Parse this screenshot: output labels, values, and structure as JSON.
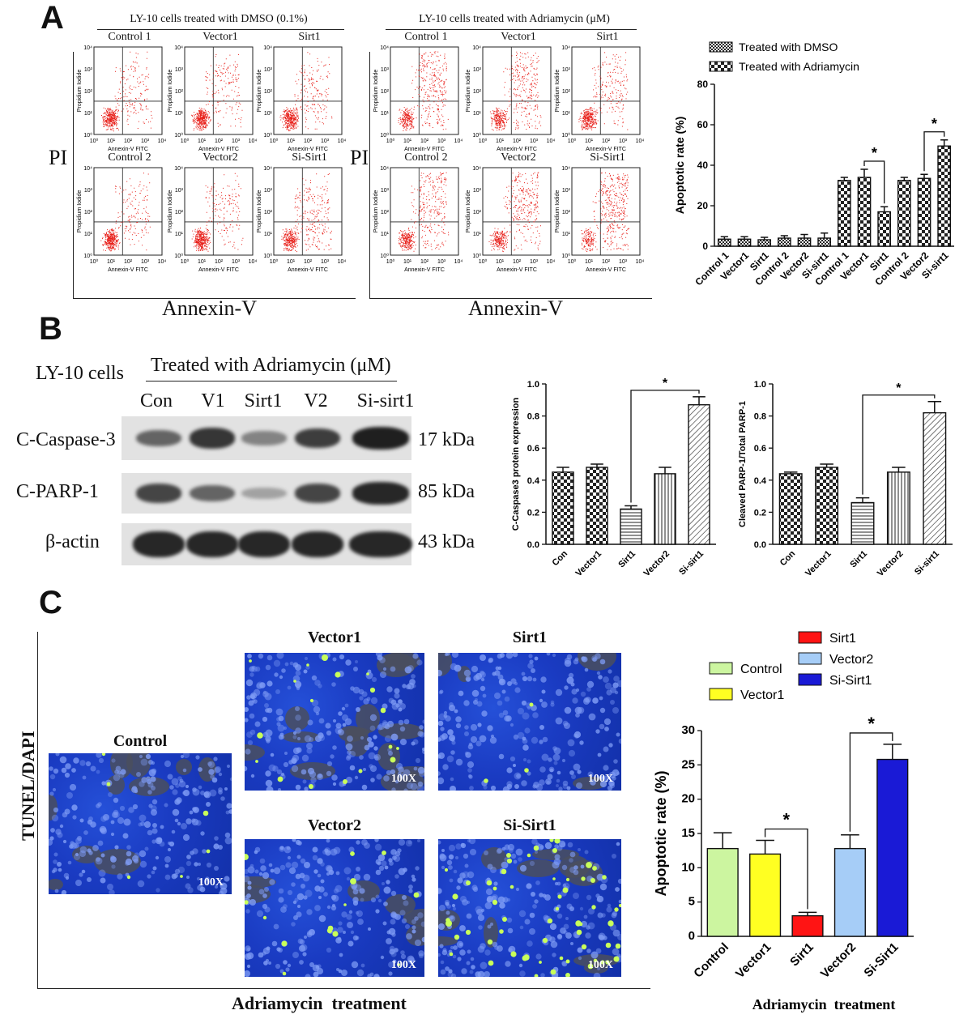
{
  "panels": {
    "a": "A",
    "b": "B",
    "c": "C"
  },
  "panelA": {
    "groups": [
      {
        "title": "LY-10 cells treated with DMSO (0.1%)",
        "x_label": "Annexin-V",
        "plots": [
          "Control 1",
          "Vector1",
          "Sirt1",
          "Control 2",
          "Vector2",
          "Si-Sirt1"
        ]
      },
      {
        "title": "LY-10 cells treated with Adriamycin (μM)",
        "x_label": "Annexin-V",
        "plots": [
          "Control 1",
          "Vector1",
          "Sirt1",
          "Control 2",
          "Vector2",
          "Si-Sirt1"
        ]
      }
    ],
    "pi_label": "PI",
    "flow_axis_x": "Annexin-V FITC",
    "flow_axis_y": "Propidium Iodide",
    "flow_ticks": [
      "10⁰",
      "10¹",
      "10²",
      "10³",
      "10⁴"
    ],
    "dot_color": "#e8201a"
  },
  "panelB": {
    "row_header": "LY-10 cells",
    "treatment_header": "Treated with Adriamycin (μM)",
    "lanes": [
      "Con",
      "V1",
      "Sirt1",
      "V2",
      "Si-sirt1"
    ],
    "rows": [
      {
        "label": "C-Caspase-3",
        "kda": "17 kDa"
      },
      {
        "label": "C-PARP-1",
        "kda": "85 kDa"
      },
      {
        "label": "β-actin",
        "kda": "43 kDa"
      }
    ]
  },
  "panelC": {
    "y_side_label": "TUNEL/DAPI",
    "bottom_label": "Adriamycin  treatment",
    "images": [
      {
        "title": "Control",
        "mag": "100X"
      },
      {
        "title": "Vector1",
        "mag": "100X"
      },
      {
        "title": "Sirt1",
        "mag": "100X"
      },
      {
        "title": "Vector2",
        "mag": "100X"
      },
      {
        "title": "Si-Sirt1",
        "mag": "100X"
      }
    ]
  },
  "chart_data": [
    {
      "id": "A-bar",
      "type": "bar",
      "categories": [
        "Control 1",
        "Vector1",
        "Sirt1",
        "Control 2",
        "Vector2",
        "Si-sirt1",
        "Control 1",
        "Vector1",
        "Sirt1",
        "Control 2",
        "Vector2",
        "Si-sirt1"
      ],
      "values": [
        3.5,
        3.5,
        3.2,
        4,
        4,
        4,
        32.5,
        34,
        17,
        32.5,
        33.5,
        49.5
      ],
      "errors": [
        1.2,
        1.2,
        1.2,
        1.2,
        1.8,
        2.5,
        1.5,
        4,
        2.5,
        1.5,
        2,
        3
      ],
      "hatch": [
        "dmso",
        "dmso",
        "dmso",
        "dmso",
        "dmso",
        "dmso",
        "adr",
        "adr",
        "adr",
        "adr",
        "adr",
        "adr"
      ],
      "legend": [
        "Treated with DMSO",
        "Treated with Adriamycin"
      ],
      "legend_position": "top-left",
      "ylabel": "Apoptotic rate (%)",
      "ylim": [
        0,
        80
      ],
      "yticks": [
        "0",
        "20",
        "40",
        "60",
        "80"
      ],
      "significance": [
        {
          "from": 7,
          "to": 8,
          "label": "*"
        },
        {
          "from": 10,
          "to": 11,
          "label": "*"
        }
      ]
    },
    {
      "id": "B-bar-1",
      "type": "bar",
      "categories": [
        "Con",
        "Vector1",
        "Sirt1",
        "Vector2",
        "Si-sirt1"
      ],
      "values": [
        0.45,
        0.48,
        0.22,
        0.44,
        0.87
      ],
      "errors": [
        0.03,
        0.02,
        0.02,
        0.04,
        0.05
      ],
      "ylabel": "C-Caspase3 protein expression",
      "ylim": [
        0,
        1.0
      ],
      "yticks": [
        "0.0",
        "0.2",
        "0.4",
        "0.6",
        "0.8",
        "1.0"
      ],
      "significance": [
        {
          "from": 2,
          "to": 4,
          "label": "*"
        }
      ]
    },
    {
      "id": "B-bar-2",
      "type": "bar",
      "categories": [
        "Con",
        "Vector1",
        "Sirt1",
        "Vector2",
        "Si-sirt1"
      ],
      "values": [
        0.44,
        0.48,
        0.26,
        0.45,
        0.82
      ],
      "errors": [
        0.01,
        0.02,
        0.03,
        0.03,
        0.07
      ],
      "ylabel": "Cleaved PARP-1/Total PARP-1",
      "ylim": [
        0,
        1.0
      ],
      "yticks": [
        "0.0",
        "0.2",
        "0.4",
        "0.6",
        "0.8",
        "1.0"
      ],
      "significance": [
        {
          "from": 2,
          "to": 4,
          "label": "*"
        }
      ]
    },
    {
      "id": "C-bar",
      "type": "bar",
      "categories": [
        "Control",
        "Vector1",
        "Sirt1",
        "Vector2",
        "Si-Sirt1"
      ],
      "values": [
        12.8,
        12,
        3,
        12.8,
        25.8
      ],
      "errors": [
        2.3,
        2,
        0.5,
        2,
        2.2
      ],
      "colors": [
        "#ccf5a0",
        "#ffff22",
        "#ff1414",
        "#a6cdf7",
        "#1a1ad6"
      ],
      "legend_position": "top",
      "ylabel": "Apoptotic rate (%)",
      "xlabel": "Adriamycin  treatment",
      "ylim": [
        0,
        30
      ],
      "yticks": [
        "0",
        "5",
        "10",
        "15",
        "20",
        "25",
        "30"
      ],
      "significance": [
        {
          "from": 1,
          "to": 2,
          "label": "*"
        },
        {
          "from": 3,
          "to": 4,
          "label": "*"
        }
      ]
    }
  ]
}
